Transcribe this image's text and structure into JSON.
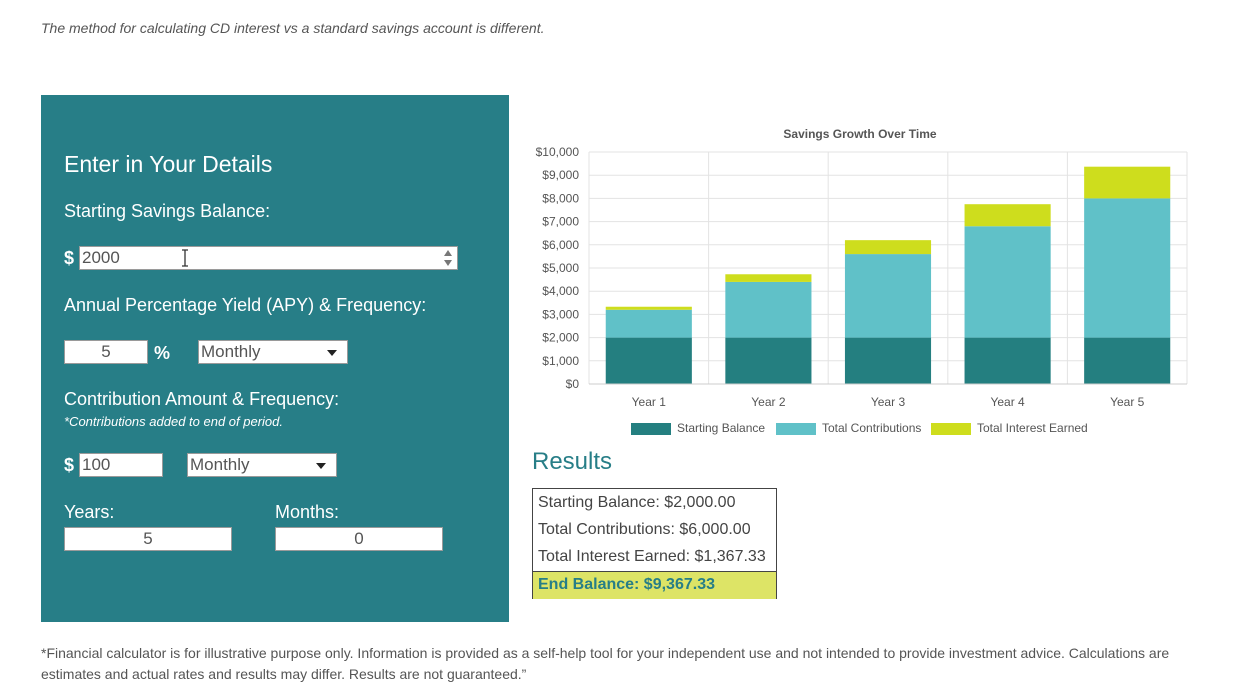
{
  "intro_text": "The method for calculating CD interest vs a standard savings account is different.",
  "form": {
    "heading": "Enter in Your Details",
    "starting_label": "Starting Savings Balance:",
    "currency_symbol": "$",
    "starting_value": "2000",
    "apy_label": "Annual Percentage Yield (APY) & Frequency:",
    "apy_value": "5",
    "percent_symbol": "%",
    "apy_frequency": "Monthly",
    "contribution_label": "Contribution Amount & Frequency:",
    "contribution_note": "*Contributions added to end of period.",
    "contribution_value": "100",
    "contribution_frequency": "Monthly",
    "years_label": "Years:",
    "years_value": "5",
    "months_label": "Months:",
    "months_value": "0"
  },
  "chart_data": {
    "type": "bar",
    "stacked": true,
    "title": "Savings Growth Over Time",
    "categories": [
      "Year 1",
      "Year 2",
      "Year 3",
      "Year 4",
      "Year 5"
    ],
    "series": [
      {
        "name": "Starting Balance",
        "color": "#247f80",
        "values": [
          2000,
          2000,
          2000,
          2000,
          2000
        ]
      },
      {
        "name": "Total Contributions",
        "color": "#60c1c8",
        "values": [
          1200,
          2400,
          3600,
          4800,
          6000
        ]
      },
      {
        "name": "Total Interest Earned",
        "color": "#cedd1d",
        "values": [
          130,
          330,
          600,
          950,
          1367
        ]
      }
    ],
    "ylim": [
      0,
      10000
    ],
    "yticks": [
      "$0",
      "$1,000",
      "$2,000",
      "$3,000",
      "$4,000",
      "$5,000",
      "$6,000",
      "$7,000",
      "$8,000",
      "$9,000",
      "$10,000"
    ],
    "grid": true,
    "legend_position": "bottom"
  },
  "results": {
    "heading": "Results",
    "starting_balance": "Starting Balance: $2,000.00",
    "total_contributions": "Total Contributions: $6,000.00",
    "total_interest": "Total Interest Earned: $1,367.33",
    "end_balance": "End Balance: $9,367.33"
  },
  "disclaimer": "*Financial calculator is for illustrative purpose only. Information is provided as a self-help tool for your independent use and not intended to provide investment advice. Calculations are estimates and actual rates and results may differ. Results are not guaranteed.”"
}
